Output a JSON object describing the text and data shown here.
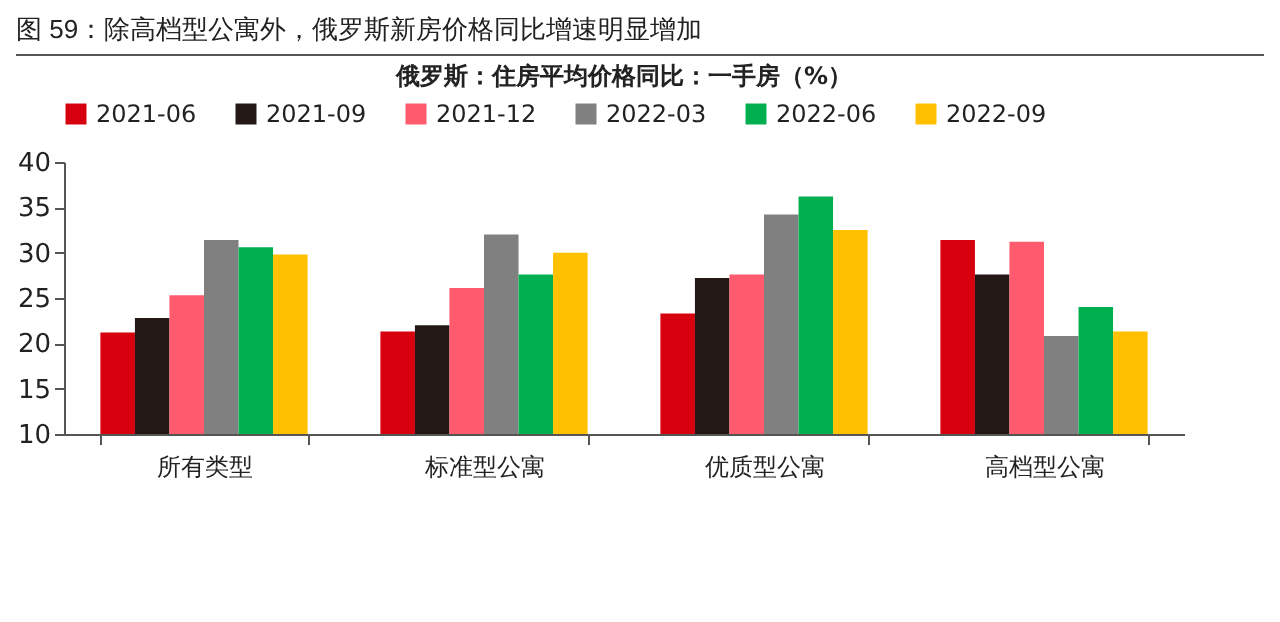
{
  "chart_data": {
    "type": "bar",
    "title": "图 59：除高档型公寓外，俄罗斯新房价格同比增速明显增加",
    "subtitle": "俄罗斯：住房平均价格同比：一手房（%）",
    "categories": [
      "所有类型",
      "标准型公寓",
      "优质型公寓",
      "高档型公寓"
    ],
    "series": [
      {
        "name": "2021-06",
        "color": "#d7000f",
        "values": [
          21.2,
          21.3,
          23.3,
          31.4
        ]
      },
      {
        "name": "2021-09",
        "color": "#231815",
        "values": [
          22.8,
          22.0,
          27.2,
          27.6
        ]
      },
      {
        "name": "2021-12",
        "color": "#ff5a6e",
        "values": [
          25.3,
          26.1,
          27.6,
          31.2
        ]
      },
      {
        "name": "2022-03",
        "color": "#808080",
        "values": [
          31.4,
          32.0,
          34.2,
          20.8
        ]
      },
      {
        "name": "2022-06",
        "color": "#00b050",
        "values": [
          30.6,
          27.6,
          36.2,
          24.0
        ]
      },
      {
        "name": "2022-09",
        "color": "#ffc000",
        "values": [
          29.8,
          30.0,
          32.5,
          21.3
        ]
      }
    ],
    "ylim": [
      10,
      40
    ],
    "yticks": [
      10,
      15,
      20,
      25,
      30,
      35,
      40
    ],
    "grid": false,
    "legend": "top"
  }
}
